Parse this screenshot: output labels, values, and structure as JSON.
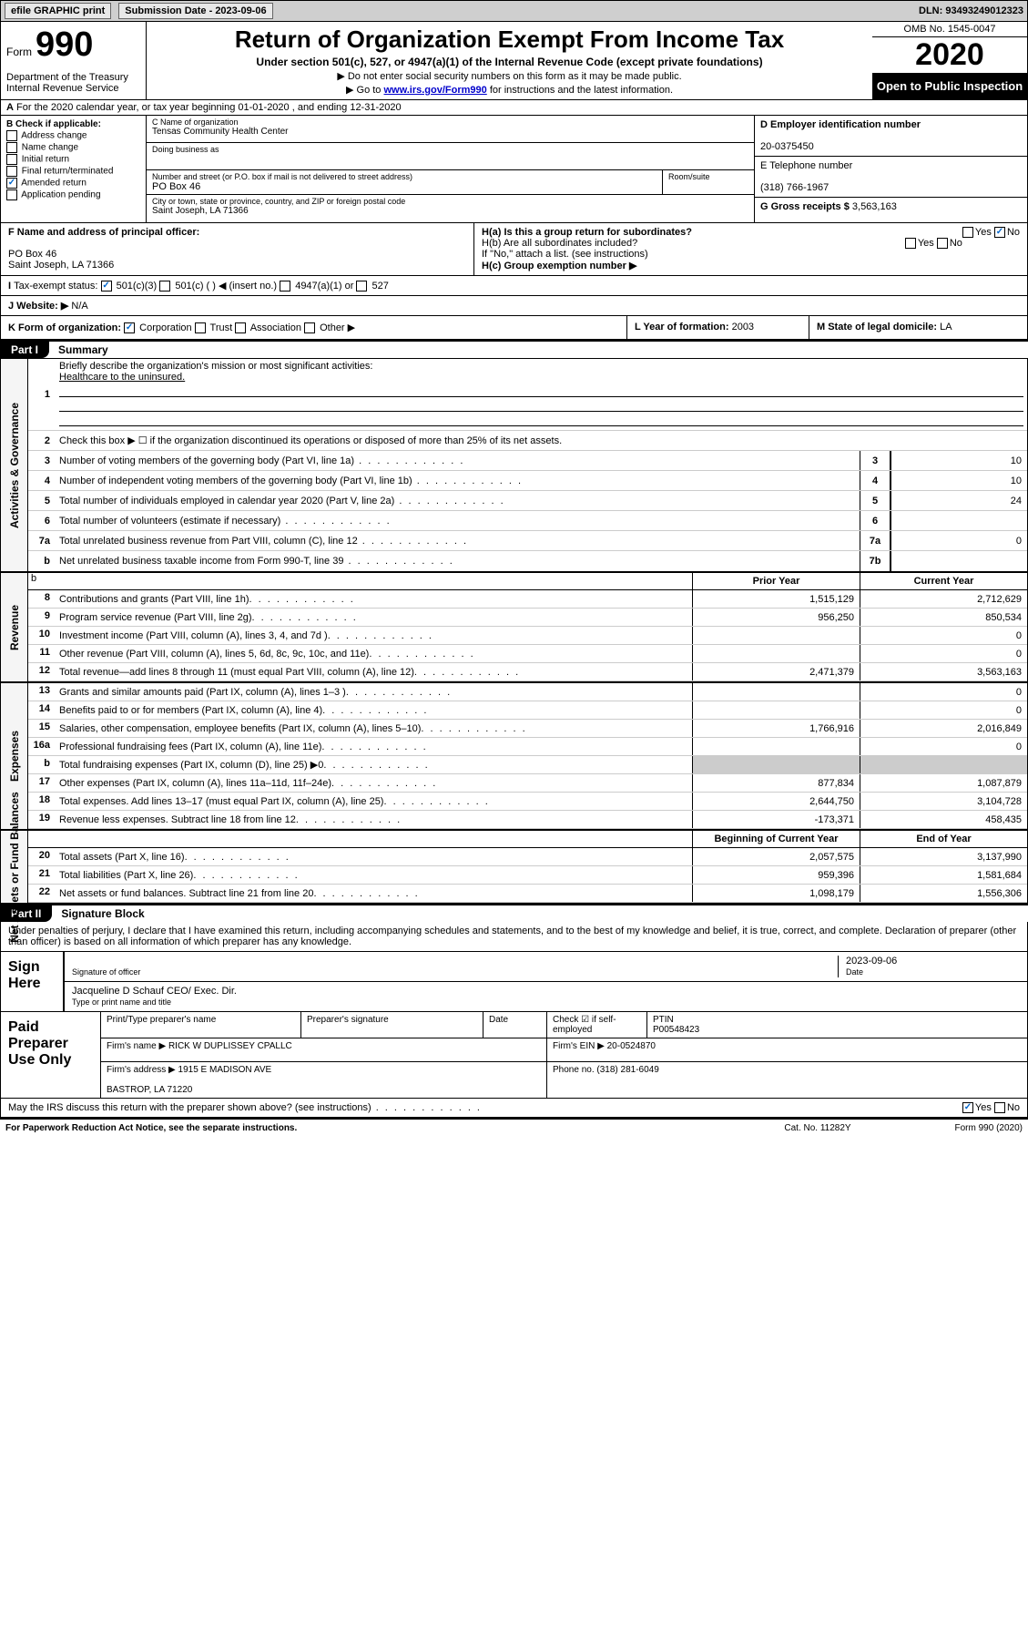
{
  "topbar": {
    "efile": "efile GRAPHIC print",
    "subdate_label": "Submission Date - 2023-09-06",
    "dln": "DLN: 93493249012323"
  },
  "header": {
    "form_word": "Form",
    "form_num": "990",
    "dept": "Department of the Treasury\nInternal Revenue Service",
    "title": "Return of Organization Exempt From Income Tax",
    "sub": "Under section 501(c), 527, or 4947(a)(1) of the Internal Revenue Code (except private foundations)",
    "note1": "Do not enter social security numbers on this form as it may be made public.",
    "note2_pre": "Go to ",
    "note2_link": "www.irs.gov/Form990",
    "note2_post": " for instructions and the latest information.",
    "omb": "OMB No. 1545-0047",
    "year": "2020",
    "inspect": "Open to Public Inspection"
  },
  "A": {
    "text": "For the 2020 calendar year, or tax year beginning 01-01-2020    , and ending 12-31-2020"
  },
  "B": {
    "label": "B Check if applicable:",
    "items": [
      "Address change",
      "Name change",
      "Initial return",
      "Final return/terminated",
      "Amended return",
      "Application pending"
    ],
    "checked_index": 4
  },
  "C": {
    "name_label": "C Name of organization",
    "name": "Tensas Community Health Center",
    "dba_label": "Doing business as",
    "dba": "",
    "addr_label": "Number and street (or P.O. box if mail is not delivered to street address)",
    "room_label": "Room/suite",
    "addr": "PO Box 46",
    "city_label": "City or town, state or province, country, and ZIP or foreign postal code",
    "city": "Saint Joseph, LA  71366"
  },
  "D": {
    "label": "D Employer identification number",
    "val": "20-0375450"
  },
  "E": {
    "label": "E Telephone number",
    "val": "(318) 766-1967"
  },
  "G": {
    "label": "G Gross receipts $",
    "val": "3,563,163"
  },
  "F": {
    "label": "F  Name and address of principal officer:",
    "line1": "PO Box 46",
    "line2": "Saint Joseph, LA  71366"
  },
  "H": {
    "a": "H(a)  Is this a group return for subordinates?",
    "a_no_checked": true,
    "b": "H(b)  Are all subordinates included?",
    "b_note": "If \"No,\" attach a list. (see instructions)",
    "c": "H(c)  Group exemption number ▶"
  },
  "I": {
    "label": "Tax-exempt status:",
    "opts": [
      "501(c)(3)",
      "501(c) (  ) ◀ (insert no.)",
      "4947(a)(1) or",
      "527"
    ],
    "checked_index": 0
  },
  "J": {
    "label": "J  Website: ▶",
    "val": "N/A"
  },
  "K": {
    "label": "K Form of organization:",
    "opts": [
      "Corporation",
      "Trust",
      "Association",
      "Other ▶"
    ],
    "checked_index": 0
  },
  "L": {
    "label": "L Year of formation:",
    "val": "2003"
  },
  "M": {
    "label": "M State of legal domicile:",
    "val": "LA"
  },
  "part1": {
    "tab": "Part I",
    "title": "Summary",
    "q1_label": "Briefly describe the organization's mission or most significant activities:",
    "q1_val": "Healthcare to the uninsured.",
    "q2": "Check this box ▶ ☐  if the organization discontinued its operations or disposed of more than 25% of its net assets.",
    "lines_ag": [
      {
        "n": "3",
        "t": "Number of voting members of the governing body (Part VI, line 1a)",
        "box": "3",
        "v": "10"
      },
      {
        "n": "4",
        "t": "Number of independent voting members of the governing body (Part VI, line 1b)",
        "box": "4",
        "v": "10"
      },
      {
        "n": "5",
        "t": "Total number of individuals employed in calendar year 2020 (Part V, line 2a)",
        "box": "5",
        "v": "24"
      },
      {
        "n": "6",
        "t": "Total number of volunteers (estimate if necessary)",
        "box": "6",
        "v": ""
      },
      {
        "n": "7a",
        "t": "Total unrelated business revenue from Part VIII, column (C), line 12",
        "box": "7a",
        "v": "0"
      },
      {
        "n": "b",
        "t": "Net unrelated business taxable income from Form 990-T, line 39",
        "box": "7b",
        "v": ""
      }
    ],
    "col_prior": "Prior Year",
    "col_current": "Current Year",
    "rev": [
      {
        "n": "8",
        "t": "Contributions and grants (Part VIII, line 1h)",
        "p": "1,515,129",
        "c": "2,712,629"
      },
      {
        "n": "9",
        "t": "Program service revenue (Part VIII, line 2g)",
        "p": "956,250",
        "c": "850,534"
      },
      {
        "n": "10",
        "t": "Investment income (Part VIII, column (A), lines 3, 4, and 7d )",
        "p": "",
        "c": "0"
      },
      {
        "n": "11",
        "t": "Other revenue (Part VIII, column (A), lines 5, 6d, 8c, 9c, 10c, and 11e)",
        "p": "",
        "c": "0"
      },
      {
        "n": "12",
        "t": "Total revenue—add lines 8 through 11 (must equal Part VIII, column (A), line 12)",
        "p": "2,471,379",
        "c": "3,563,163"
      }
    ],
    "exp": [
      {
        "n": "13",
        "t": "Grants and similar amounts paid (Part IX, column (A), lines 1–3 )",
        "p": "",
        "c": "0"
      },
      {
        "n": "14",
        "t": "Benefits paid to or for members (Part IX, column (A), line 4)",
        "p": "",
        "c": "0"
      },
      {
        "n": "15",
        "t": "Salaries, other compensation, employee benefits (Part IX, column (A), lines 5–10)",
        "p": "1,766,916",
        "c": "2,016,849"
      },
      {
        "n": "16a",
        "t": "Professional fundraising fees (Part IX, column (A), line 11e)",
        "p": "",
        "c": "0"
      },
      {
        "n": "b",
        "t": "Total fundraising expenses (Part IX, column (D), line 25) ▶0",
        "p": "__shade__",
        "c": "__shade__"
      },
      {
        "n": "17",
        "t": "Other expenses (Part IX, column (A), lines 11a–11d, 11f–24e)",
        "p": "877,834",
        "c": "1,087,879"
      },
      {
        "n": "18",
        "t": "Total expenses. Add lines 13–17 (must equal Part IX, column (A), line 25)",
        "p": "2,644,750",
        "c": "3,104,728"
      },
      {
        "n": "19",
        "t": "Revenue less expenses. Subtract line 18 from line 12",
        "p": "-173,371",
        "c": "458,435"
      }
    ],
    "col_beg": "Beginning of Current Year",
    "col_end": "End of Year",
    "na": [
      {
        "n": "20",
        "t": "Total assets (Part X, line 16)",
        "p": "2,057,575",
        "c": "3,137,990"
      },
      {
        "n": "21",
        "t": "Total liabilities (Part X, line 26)",
        "p": "959,396",
        "c": "1,581,684"
      },
      {
        "n": "22",
        "t": "Net assets or fund balances. Subtract line 21 from line 20",
        "p": "1,098,179",
        "c": "1,556,306"
      }
    ],
    "vlabels": {
      "ag": "Activities & Governance",
      "rev": "Revenue",
      "exp": "Expenses",
      "na": "Net Assets or Fund Balances"
    }
  },
  "part2": {
    "tab": "Part II",
    "title": "Signature Block",
    "para": "Under penalties of perjury, I declare that I have examined this return, including accompanying schedules and statements, and to the best of my knowledge and belief, it is true, correct, and complete. Declaration of preparer (other than officer) is based on all information of which preparer has any knowledge.",
    "sign_here": "Sign Here",
    "sig_officer": "Signature of officer",
    "sig_date": "2023-09-06",
    "date_label": "Date",
    "officer_name": "Jacqueline D Schauf CEO/ Exec. Dir.",
    "officer_name_label": "Type or print name and title",
    "paid": "Paid Preparer Use Only",
    "h1": "Print/Type preparer's name",
    "h2": "Preparer's signature",
    "h3": "Date",
    "h4": "Check ☑ if self-employed",
    "h5": "PTIN",
    "ptin": "P00548423",
    "firm_label": "Firm's name  ▶",
    "firm": "RICK W DUPLISSEY CPALLC",
    "ein_label": "Firm's EIN ▶",
    "ein": "20-0524870",
    "addr_label": "Firm's address ▶",
    "addr1": "1915 E MADISON AVE",
    "addr2": "BASTROP, LA  71220",
    "phone_label": "Phone no.",
    "phone": "(318) 281-6049",
    "discuss": "May the IRS discuss this return with the preparer shown above? (see instructions)",
    "yes_checked": true
  },
  "footer": {
    "l": "For Paperwork Reduction Act Notice, see the separate instructions.",
    "m": "Cat. No. 11282Y",
    "r": "Form 990 (2020)"
  }
}
